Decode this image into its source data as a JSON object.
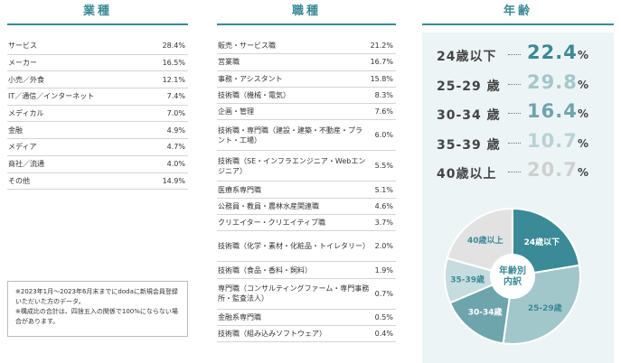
{
  "headers": {
    "industry": "業種",
    "job": "職種",
    "age": "年齢"
  },
  "industry_rows": [
    {
      "label": "サービス",
      "value": "28.4%"
    },
    {
      "label": "メーカー",
      "value": "16.5%"
    },
    {
      "label": "小売／外食",
      "value": "12.1%"
    },
    {
      "label": "IT／通信／インターネット",
      "value": "7.4%"
    },
    {
      "label": "メディカル",
      "value": "7.0%"
    },
    {
      "label": "金融",
      "value": "4.9%"
    },
    {
      "label": "メディア",
      "value": "4.7%"
    },
    {
      "label": "商社／流通",
      "value": "4.0%"
    },
    {
      "label": "その他",
      "value": "14.9%"
    }
  ],
  "job_rows": [
    {
      "label": "販売・サービス職",
      "value": "21.2%"
    },
    {
      "label": "営業職",
      "value": "16.7%"
    },
    {
      "label": "事務・アシスタント",
      "value": "15.8%"
    },
    {
      "label": "技術職（機械・電気）",
      "value": "8.3%"
    },
    {
      "label": "企画・管理",
      "value": "7.6%"
    },
    {
      "label": "技術職・専門職（建設・建築・不動産・プラント・工場）",
      "value": "6.0%"
    },
    {
      "label": "技術職（SE・インフラエンジニア・Webエンジニア）",
      "value": "5.5%"
    },
    {
      "label": "医療系専門職",
      "value": "5.1%"
    },
    {
      "label": "公務員・教員・農林水産関連職",
      "value": "4.6%"
    },
    {
      "label": "クリエイター・クリエイティブ職",
      "value": "3.7%"
    },
    {
      "label": "技術職（化学・素材・化粧品・トイレタリー）",
      "value": "2.0%"
    },
    {
      "label": "技術職（食品・香料・飼料）",
      "value": "1.9%"
    },
    {
      "label": "専門職（コンサルティングファーム・専門事務所・監査法人）",
      "value": "0.7%"
    },
    {
      "label": "金融系専門職",
      "value": "0.5%"
    },
    {
      "label": "技術職（組み込みソフトウェア）",
      "value": "0.4%"
    }
  ],
  "notes": [
    "※2023年1月～2023年6月末までにdodaに新規会員登録いただいた方のデータ。",
    "※構成比の合計は、四捨五入の関係で100%にならない場合があります。"
  ],
  "chart_data": {
    "type": "pie",
    "title": "年齢別内訳",
    "center_label_line1": "年齢別",
    "center_label_line2": "内訳",
    "categories": [
      "24歳以下",
      "25-29歳",
      "30-34歳",
      "35-39歳",
      "40歳以上"
    ],
    "display_labels": [
      "24歳以下",
      "25-29 歳",
      "30-34 歳",
      "35-39 歳",
      "40歳以上"
    ],
    "pie_labels": [
      "24歳以下",
      "25-29歳",
      "30-34歳",
      "35-39歳",
      "40歳以上"
    ],
    "values": [
      22.4,
      29.8,
      16.4,
      10.7,
      20.7
    ],
    "value_text": [
      "22.4",
      "29.8",
      "16.4",
      "10.7",
      "20.7"
    ],
    "unit": "%",
    "colors": [
      "#3a8a97",
      "#a2c7cb",
      "#6ea5ad",
      "#c6dcde",
      "#e2e2e2"
    ],
    "value_colors": [
      "#3a8a97",
      "#a2c7cb",
      "#6ea5ad",
      "#b7d2d5",
      "#cfcfcf"
    ],
    "label_colors": [
      "#ffffff",
      "#3a8a97",
      "#ffffff",
      "#3a8a97",
      "#3a8a97"
    ]
  }
}
